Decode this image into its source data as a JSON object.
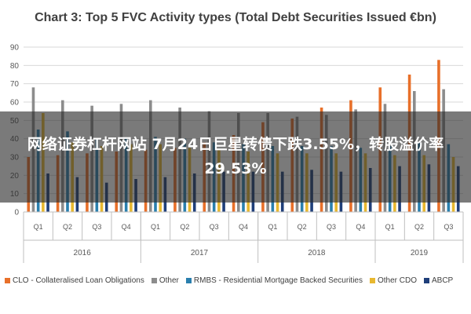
{
  "overlay": {
    "text": "网络证券杠杆网站 7月24日巨星转债下跌3.55%，转股溢价率29.53%"
  },
  "chart_data": {
    "type": "bar",
    "title": "Chart 3: Top 5 FVC Activity types (Total Debt Securities Issued €bn)",
    "xlabel": "",
    "ylabel": "",
    "ylim": [
      0,
      90
    ],
    "yticks": [
      0,
      10,
      20,
      30,
      40,
      50,
      60,
      70,
      80,
      90
    ],
    "grid": true,
    "legend_position": "bottom",
    "categories": [
      "Q1",
      "Q2",
      "Q3",
      "Q4",
      "Q1",
      "Q2",
      "Q3",
      "Q4",
      "Q1",
      "Q2",
      "Q3",
      "Q4",
      "Q1",
      "Q2",
      "Q3"
    ],
    "groups": [
      {
        "label": "2016",
        "count": 4
      },
      {
        "label": "2017",
        "count": 4
      },
      {
        "label": "2018",
        "count": 4
      },
      {
        "label": "2019",
        "count": 3
      }
    ],
    "series": [
      {
        "name": "CLO - Collateralised Loan Obligations",
        "color": "#e8702a",
        "values": [
          30,
          31,
          32,
          33,
          34,
          35,
          38,
          42,
          49,
          51,
          57,
          61,
          68,
          75,
          83
        ]
      },
      {
        "name": "Other",
        "color": "#8c8c8c",
        "values": [
          68,
          61,
          58,
          59,
          61,
          57,
          55,
          54,
          54,
          52,
          53,
          56,
          59,
          66,
          67
        ]
      },
      {
        "name": "RMBS - Residential Mortgage Backed Securities",
        "color": "#2a7fae",
        "values": [
          45,
          44,
          40,
          40,
          41,
          40,
          38,
          37,
          36,
          36,
          36,
          35,
          36,
          38,
          37
        ]
      },
      {
        "name": "Other CDO",
        "color": "#e8b830",
        "values": [
          54,
          38,
          36,
          37,
          37,
          35,
          34,
          33,
          32,
          32,
          32,
          32,
          31,
          31,
          30
        ]
      },
      {
        "name": "ABCP",
        "color": "#1f3f7a",
        "values": [
          21,
          19,
          16,
          18,
          19,
          21,
          22,
          22,
          22,
          23,
          22,
          24,
          25,
          26,
          25
        ]
      }
    ]
  }
}
